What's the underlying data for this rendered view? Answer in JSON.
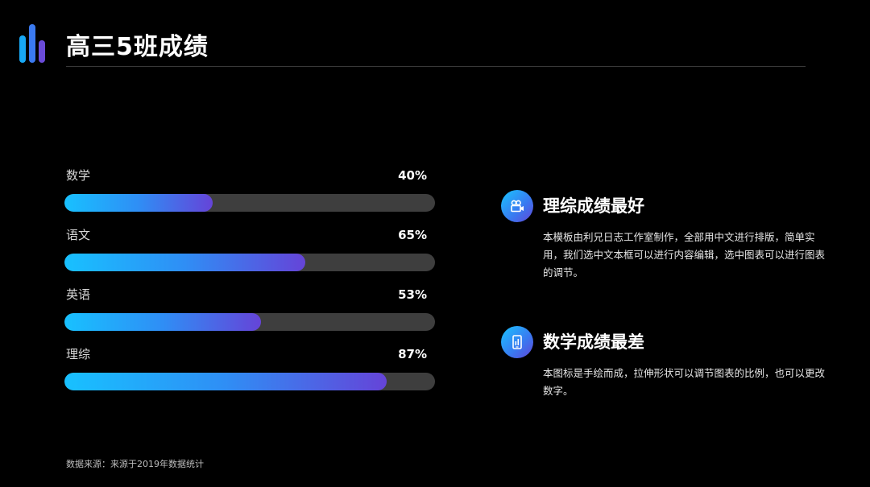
{
  "header": {
    "title": "高三5班成绩"
  },
  "colors": {
    "gradient_start": "#18c1ff",
    "gradient_end": "#6544d8",
    "track": "#3e3e3e"
  },
  "chart_data": {
    "type": "bar",
    "orientation": "horizontal",
    "categories": [
      "数学",
      "语文",
      "英语",
      "理综"
    ],
    "values": [
      40,
      65,
      53,
      87
    ],
    "value_labels": [
      "40%",
      "65%",
      "53%",
      "87%"
    ],
    "xlim": [
      0,
      100
    ],
    "title": "",
    "xlabel": "",
    "ylabel": "",
    "grid": false
  },
  "cards": [
    {
      "icon": "video-camera-icon",
      "heading": "理综成绩最好",
      "body": "本模板由利兄日志工作室制作，全部用中文进行排版，简单实用，我们选中文本框可以进行内容编辑，选中图表可以进行图表的调节。"
    },
    {
      "icon": "phone-chart-icon",
      "heading": "数学成绩最差",
      "body": "本图标是手绘而成，拉伸形状可以调节图表的比例，也可以更改数字。"
    }
  ],
  "footnote": "数据来源：来源于2019年数据统计"
}
